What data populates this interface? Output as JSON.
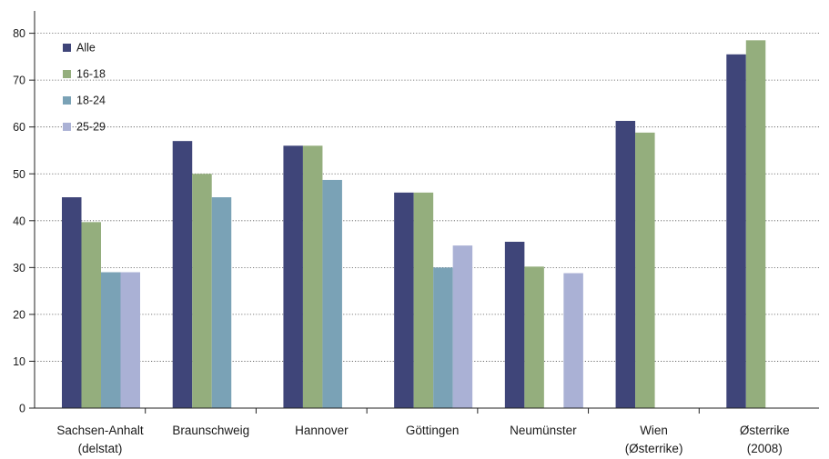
{
  "chart_data": {
    "type": "bar",
    "categories": [
      [
        "Sachsen-Anhalt",
        "(delstat)"
      ],
      [
        "Braunschweig"
      ],
      [
        "Hannover"
      ],
      [
        "Göttingen"
      ],
      [
        "Neumünster"
      ],
      [
        "Wien",
        "(Østerrike)"
      ],
      [
        "Østerrike",
        "(2008)"
      ]
    ],
    "series": [
      {
        "name": "Alle",
        "color": "#3f4579",
        "values": [
          45,
          57,
          56,
          46,
          35.5,
          61.3,
          75.5
        ]
      },
      {
        "name": "16-18",
        "color": "#94ae7d",
        "values": [
          39.7,
          50,
          56,
          46,
          30.2,
          58.8,
          78.5
        ]
      },
      {
        "name": "18-24",
        "color": "#7aa2b6",
        "values": [
          29,
          45,
          48.7,
          30,
          null,
          null,
          null
        ]
      },
      {
        "name": "25-29",
        "color": "#aab1d5",
        "values": [
          29,
          null,
          null,
          34.7,
          28.8,
          null,
          null
        ]
      }
    ],
    "ylim": [
      0,
      85
    ],
    "yticks": [
      0,
      10,
      20,
      30,
      40,
      50,
      60,
      70,
      80
    ],
    "grid": true,
    "grid_style": "dotted",
    "legend_position": "top-left",
    "title": "",
    "xlabel": "",
    "ylabel": ""
  }
}
